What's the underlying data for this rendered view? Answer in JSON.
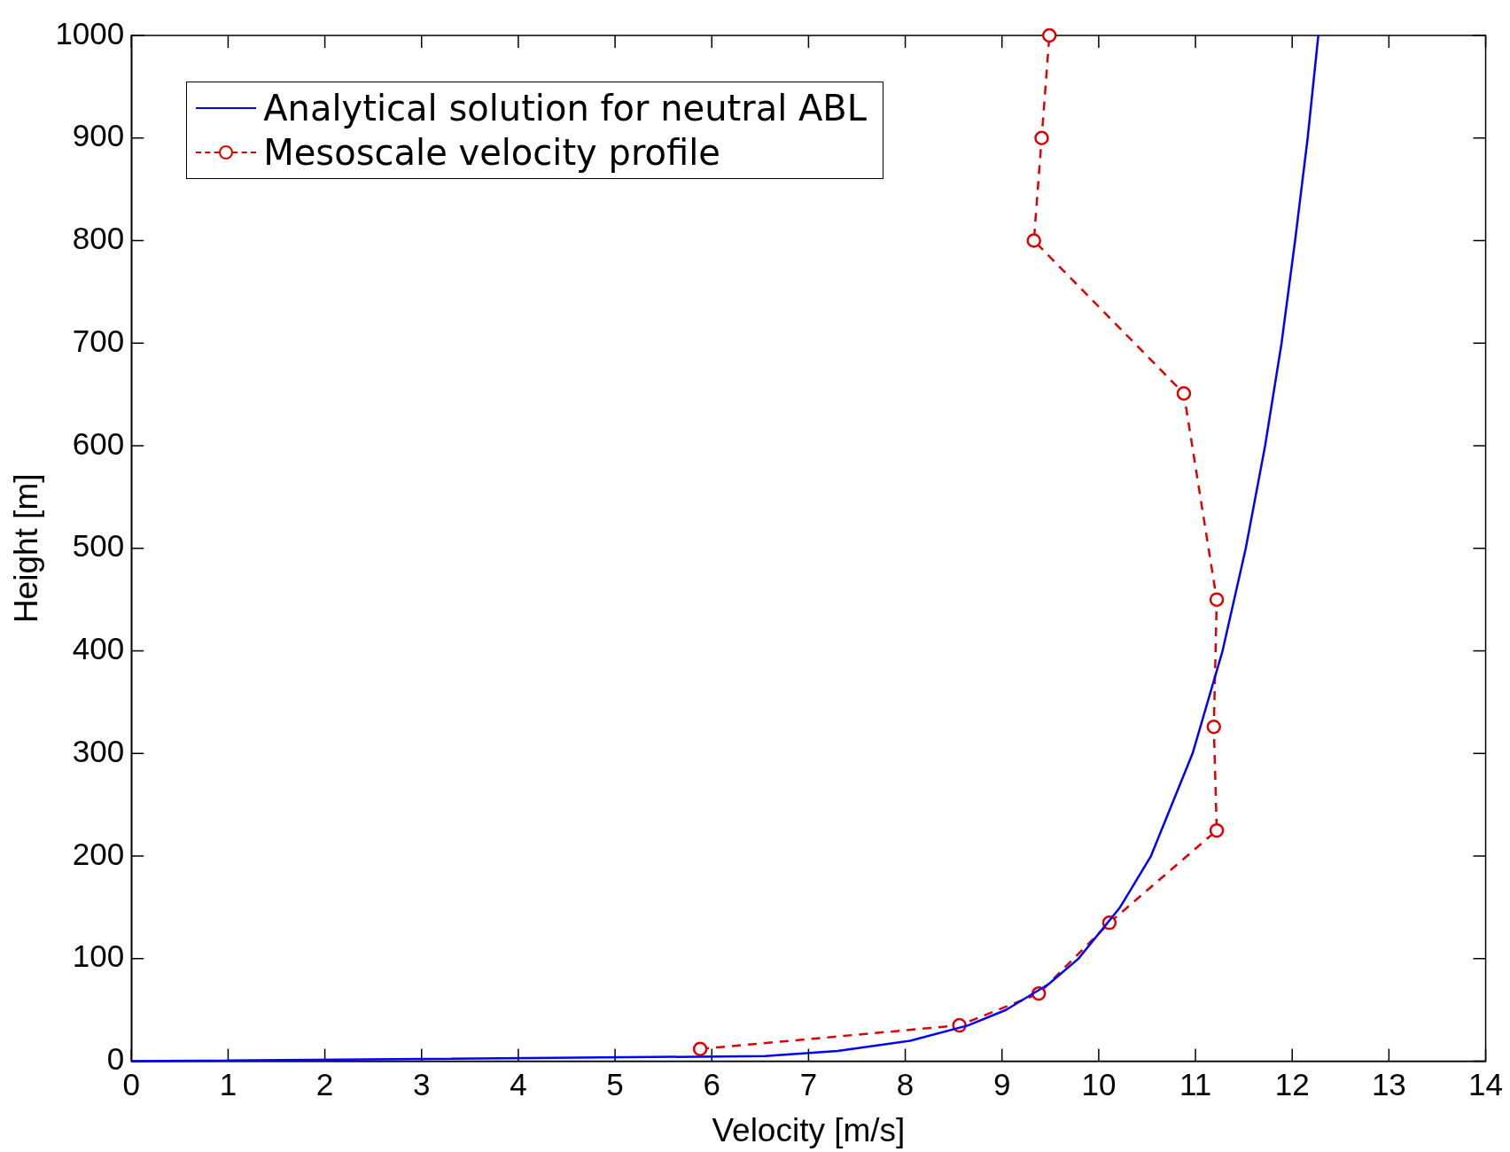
{
  "chart_data": {
    "type": "line",
    "xlabel": "Velocity [m/s]",
    "ylabel": "Height [m]",
    "xlim": [
      0,
      14
    ],
    "xticks": [
      0,
      1,
      2,
      3,
      4,
      5,
      6,
      7,
      8,
      9,
      10,
      11,
      12,
      13,
      14
    ],
    "ylim": [
      0,
      1000
    ],
    "yticks": [
      0,
      100,
      200,
      300,
      400,
      500,
      600,
      700,
      800,
      900,
      1000
    ],
    "legend": "top left",
    "grid": false,
    "series": [
      {
        "name": "Analytical solution for neutral ABL",
        "color": "#0000ff",
        "marker": "none",
        "line_style": "solid",
        "x": [
          0,
          6.55,
          7.3,
          8.05,
          8.65,
          9.04,
          9.48,
          9.79,
          10.22,
          10.54,
          10.97,
          11.28,
          11.52,
          11.72,
          11.89,
          12.03,
          12.16,
          12.27
        ],
        "values": [
          0,
          5,
          10,
          20,
          35,
          50,
          75,
          100,
          150,
          200,
          300,
          400,
          500,
          600,
          700,
          800,
          900,
          1000
        ]
      },
      {
        "name": "Mesoscale velocity profile",
        "color": "#e00000",
        "marker": "circle",
        "line_style": "dashed",
        "x": [
          5.88,
          8.56,
          9.38,
          10.11,
          11.22,
          11.19,
          11.22,
          10.88,
          9.33,
          9.41,
          9.49
        ],
        "values": [
          12,
          35,
          66,
          135,
          225,
          326,
          450,
          651,
          800,
          900,
          1000
        ]
      }
    ]
  }
}
